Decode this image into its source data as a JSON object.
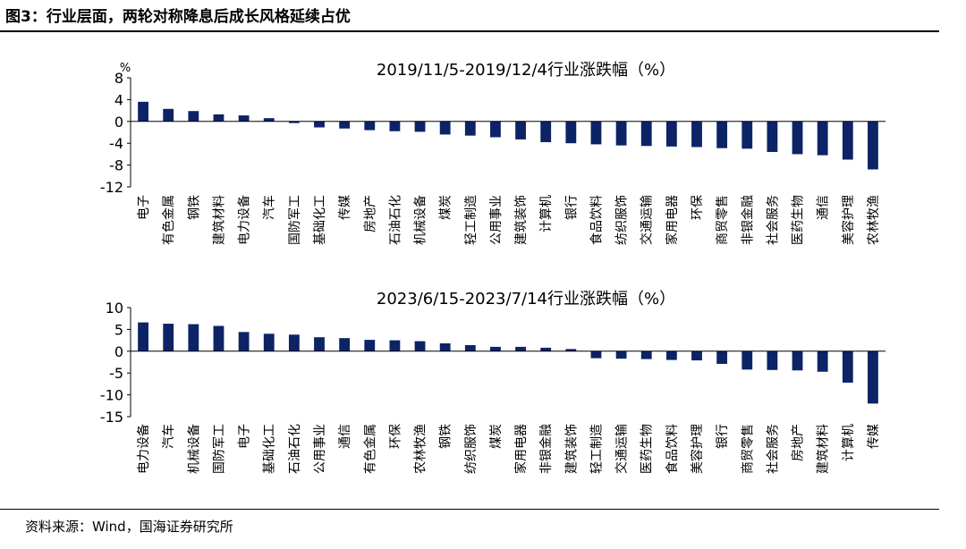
{
  "header": {
    "title": "图3：行业层面，两轮对称降息后成长风格延续占优"
  },
  "footer": {
    "source": "资料来源：Wind，国海证券研究所"
  },
  "colors": {
    "bar": "#0c2366",
    "axis": "#000000"
  },
  "chart_data": [
    {
      "type": "bar",
      "title": "2019/11/5-2019/12/4行业涨跌幅（%）",
      "unit_label": "%",
      "ylim": [
        -12,
        8
      ],
      "yticks": [
        8,
        4,
        0,
        -4,
        -8,
        -12
      ],
      "grid": false,
      "categories": [
        "电子",
        "有色金属",
        "钢铁",
        "建筑材料",
        "电力设备",
        "汽车",
        "国防军工",
        "基础化工",
        "传媒",
        "房地产",
        "石油石化",
        "机械设备",
        "煤炭",
        "轻工制造",
        "公用事业",
        "建筑装饰",
        "计算机",
        "银行",
        "食品饮料",
        "纺织服饰",
        "交通运输",
        "家用电器",
        "环保",
        "商贸零售",
        "非银金融",
        "社会服务",
        "医药生物",
        "通信",
        "美容护理",
        "农林牧渔"
      ],
      "values": [
        3.6,
        2.3,
        1.9,
        1.3,
        1.1,
        0.6,
        -0.3,
        -1.1,
        -1.3,
        -1.6,
        -1.8,
        -1.9,
        -2.4,
        -2.6,
        -2.9,
        -3.3,
        -3.8,
        -4.0,
        -4.2,
        -4.4,
        -4.5,
        -4.6,
        -4.7,
        -4.9,
        -5.0,
        -5.6,
        -6.0,
        -6.2,
        -7.0,
        -8.8
      ]
    },
    {
      "type": "bar",
      "title": "2023/6/15-2023/7/14行业涨跌幅（%）",
      "ylim": [
        -15,
        10
      ],
      "yticks": [
        10,
        5,
        0,
        -5,
        -10,
        -15
      ],
      "grid": false,
      "categories": [
        "电力设备",
        "汽车",
        "机械设备",
        "国防军工",
        "电子",
        "基础化工",
        "石油石化",
        "公用事业",
        "通信",
        "有色金属",
        "环保",
        "农林牧渔",
        "钢铁",
        "纺织服饰",
        "煤炭",
        "家用电器",
        "非银金融",
        "建筑装饰",
        "轻工制造",
        "交通运输",
        "医药生物",
        "食品饮料",
        "美容护理",
        "银行",
        "商贸零售",
        "社会服务",
        "房地产",
        "建筑材料",
        "计算机",
        "传媒"
      ],
      "values": [
        6.6,
        6.3,
        6.2,
        5.8,
        4.4,
        4.0,
        3.8,
        3.2,
        3.0,
        2.6,
        2.5,
        2.3,
        1.8,
        1.4,
        1.0,
        1.0,
        0.8,
        0.5,
        -1.6,
        -1.7,
        -1.8,
        -2.0,
        -2.1,
        -2.9,
        -4.2,
        -4.3,
        -4.4,
        -4.7,
        -7.2,
        -12.0
      ]
    }
  ]
}
